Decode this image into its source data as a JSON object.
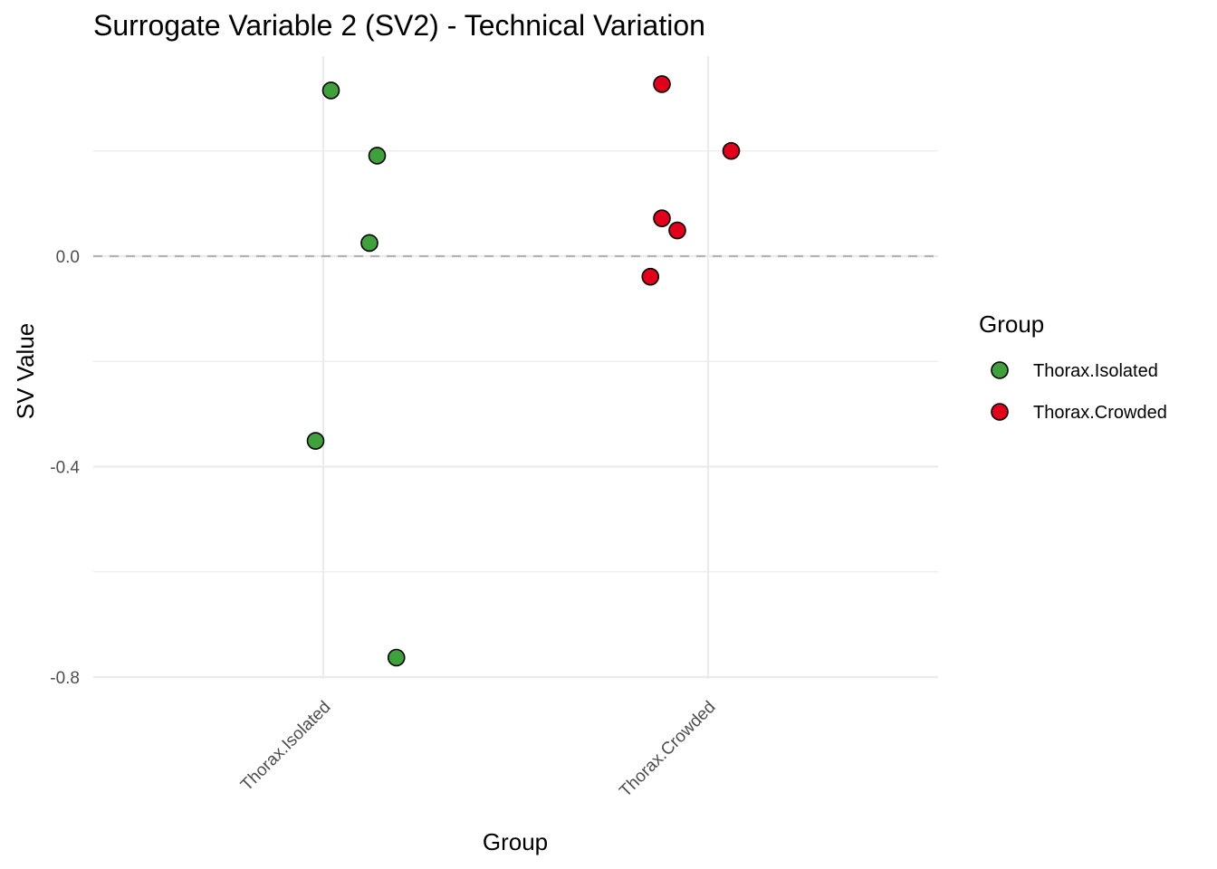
{
  "chart_data": {
    "type": "scatter",
    "title": "Surrogate Variable 2 (SV2) - Technical Variation",
    "xlabel": "Group",
    "ylabel": "SV Value",
    "categories": [
      "Thorax.Isolated",
      "Thorax.Crowded"
    ],
    "ylim": [
      -0.818,
      0.375
    ],
    "yticks": [
      0.0,
      -0.4,
      -0.8
    ],
    "ytick_labels": [
      "0.0",
      "-0.4",
      "-0.8"
    ],
    "reference_line": {
      "y": 0.0,
      "style": "dashed",
      "color": "#b3b3b3"
    },
    "grid": true,
    "legend": {
      "title": "Group",
      "position": "right"
    },
    "series": [
      {
        "name": "Thorax.Isolated",
        "color": "#3ea13b",
        "points": [
          {
            "x": 1.02,
            "y": 0.315
          },
          {
            "x": 1.14,
            "y": 0.191
          },
          {
            "x": 1.12,
            "y": 0.025
          },
          {
            "x": 0.98,
            "y": -0.351
          },
          {
            "x": 1.19,
            "y": -0.763
          }
        ]
      },
      {
        "name": "Thorax.Crowded",
        "color": "#e3001b",
        "points": [
          {
            "x": 1.88,
            "y": 0.327
          },
          {
            "x": 2.06,
            "y": 0.2
          },
          {
            "x": 1.88,
            "y": 0.072
          },
          {
            "x": 1.92,
            "y": 0.049
          },
          {
            "x": 1.85,
            "y": -0.039
          }
        ]
      }
    ]
  }
}
